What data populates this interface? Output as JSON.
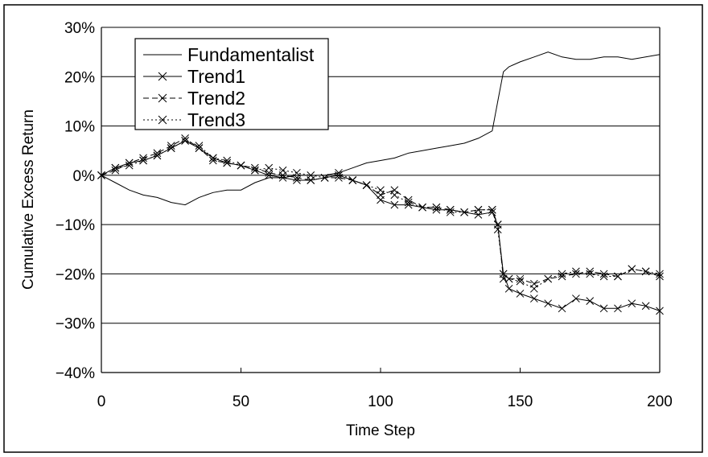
{
  "chart_data": {
    "type": "line",
    "xlabel": "Time Step",
    "ylabel": "Cumulative Excess Return",
    "xlim": [
      0,
      200
    ],
    "ylim": [
      -40,
      30
    ],
    "x_ticks": [
      "0",
      "50",
      "100",
      "150",
      "200"
    ],
    "y_ticks": [
      "30%",
      "20%",
      "10%",
      "0%",
      "−10%",
      "−20%",
      "−30%",
      "−40%"
    ],
    "grid": "horizontal",
    "legend_position": "top-left",
    "x": [
      0,
      5,
      10,
      15,
      20,
      25,
      30,
      35,
      40,
      45,
      50,
      55,
      60,
      65,
      70,
      75,
      80,
      85,
      90,
      95,
      100,
      105,
      110,
      115,
      120,
      125,
      130,
      135,
      140,
      142,
      144,
      146,
      150,
      155,
      160,
      165,
      170,
      175,
      180,
      185,
      190,
      195,
      200
    ],
    "series": [
      {
        "name": "Fundamentalist",
        "style": "solid",
        "marker": "none",
        "values": [
          0,
          -1.5,
          -3,
          -4,
          -4.5,
          -5.5,
          -6,
          -4.5,
          -3.5,
          -3,
          -3,
          -1.5,
          -0.5,
          -0.5,
          0,
          0,
          0,
          0.5,
          1.5,
          2.5,
          3,
          3.5,
          4.5,
          5,
          5.5,
          6,
          6.5,
          7.5,
          9,
          15,
          21,
          22,
          23,
          24,
          25,
          24,
          23.5,
          23.5,
          24,
          24,
          23.5,
          24,
          24.5
        ]
      },
      {
        "name": "Trend1",
        "style": "solid",
        "marker": "x",
        "values": [
          0,
          1.5,
          2.5,
          3,
          4,
          5.5,
          7,
          5.5,
          3.5,
          2.5,
          2,
          1,
          0,
          -0.5,
          -1,
          -1,
          -0.5,
          0,
          -1,
          -2,
          -5,
          -6,
          -6,
          -6.5,
          -7,
          -7,
          -7.5,
          -8,
          -7.5,
          -10,
          -20,
          -23,
          -24,
          -25,
          -26,
          -27,
          -25,
          -25.5,
          -27,
          -27,
          -26,
          -26.5,
          -27.5
        ]
      },
      {
        "name": "Trend2",
        "style": "dashed",
        "marker": "x",
        "values": [
          0,
          1,
          2.5,
          3.5,
          4.5,
          6,
          7.5,
          5.5,
          3,
          2.5,
          2,
          1.5,
          0.5,
          0,
          -0.5,
          -1,
          -0.5,
          -0.5,
          -1,
          -2,
          -4,
          -3,
          -5,
          -6.5,
          -6.5,
          -7,
          -7.5,
          -7,
          -7,
          -10,
          -21,
          -21,
          -21,
          -22,
          -21,
          -20.5,
          -20,
          -19.5,
          -20,
          -20.5,
          -19,
          -19.5,
          -20.5
        ]
      },
      {
        "name": "Trend3",
        "style": "dotted",
        "marker": "x",
        "values": [
          0,
          1.5,
          2,
          3,
          4,
          5.5,
          7,
          6,
          3.5,
          3,
          2,
          1,
          1.5,
          1,
          0.5,
          0,
          -0.5,
          0.5,
          -1,
          -2,
          -3,
          -4,
          -5.5,
          -6.5,
          -6.5,
          -7.5,
          -7.5,
          -7,
          -7,
          -11,
          -20,
          -21,
          -21.5,
          -23,
          -21,
          -20,
          -19.5,
          -20,
          -20.5,
          -20.5,
          -19,
          -19.5,
          -20
        ]
      }
    ]
  }
}
